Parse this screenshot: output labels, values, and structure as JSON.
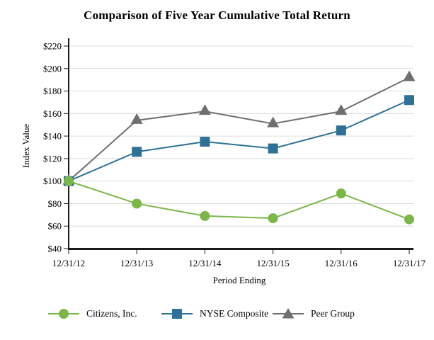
{
  "title": "Comparison of Five Year Cumulative Total Return",
  "chart_data": {
    "type": "line",
    "title": "Comparison of Five Year Cumulative Total Return",
    "x": [
      "12/31/12",
      "12/31/13",
      "12/31/14",
      "12/31/15",
      "12/31/16",
      "12/31/17"
    ],
    "series": [
      {
        "name": "Citizens, Inc.",
        "marker": "circle",
        "color": "#7ab648",
        "values": [
          100,
          80,
          69,
          67,
          89,
          66
        ]
      },
      {
        "name": "NYSE Composite",
        "marker": "square",
        "color": "#2d7296",
        "values": [
          100,
          126,
          135,
          129,
          145,
          172
        ]
      },
      {
        "name": "Peer Group",
        "marker": "triangle",
        "color": "#6f6f6f",
        "values": [
          100,
          154,
          162,
          151,
          162,
          192
        ]
      }
    ],
    "xlabel": "Period Ending",
    "ylabel": "Index Value",
    "ylim": [
      40,
      220
    ],
    "ytick_step": 20,
    "ytick_prefix": "$",
    "grid": true,
    "legend_position": "bottom"
  },
  "colors": {
    "grid": "#dcdcdc",
    "axis": "#1a1a1a",
    "text": "#000000"
  }
}
